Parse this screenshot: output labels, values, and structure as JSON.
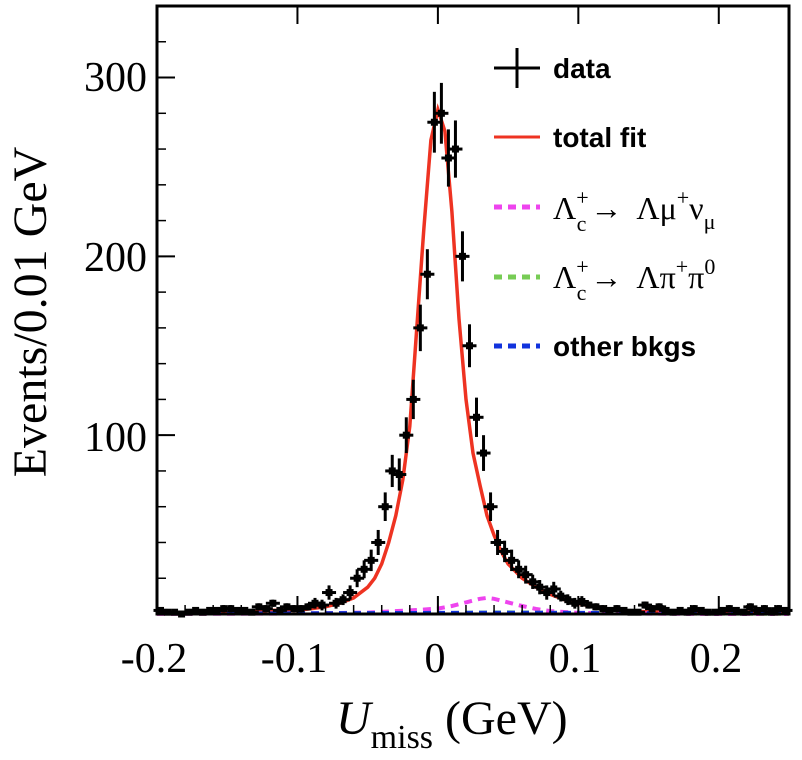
{
  "chart_data": {
    "type": "scatter",
    "title": "",
    "xlabel": {
      "main": "U",
      "sub": "miss",
      "unit": "(GeV)"
    },
    "ylabel": "Events/0.01 GeV",
    "xlim": [
      -0.2,
      0.25
    ],
    "ylim": [
      0,
      340
    ],
    "x_ticks": [
      -0.2,
      -0.1,
      0,
      0.1,
      0.2
    ],
    "x_tick_labels": [
      "-0.2",
      "-0.1",
      "0",
      "0.1",
      "0.2"
    ],
    "y_ticks": [
      100,
      200,
      300
    ],
    "y_tick_labels": [
      "100",
      "200",
      "300"
    ],
    "grid": false,
    "legend_position": "top-right",
    "series": [
      {
        "name": "data",
        "kind": "points-with-errors",
        "color": "#000000",
        "x": [
          -0.1975,
          -0.1925,
          -0.1875,
          -0.1825,
          -0.1775,
          -0.1725,
          -0.1675,
          -0.1625,
          -0.1575,
          -0.1525,
          -0.1475,
          -0.1425,
          -0.1375,
          -0.1325,
          -0.1275,
          -0.1225,
          -0.1175,
          -0.1125,
          -0.1075,
          -0.1025,
          -0.0975,
          -0.0925,
          -0.0875,
          -0.0825,
          -0.0775,
          -0.0725,
          -0.0675,
          -0.0625,
          -0.0575,
          -0.0525,
          -0.0475,
          -0.0425,
          -0.0375,
          -0.0325,
          -0.0275,
          -0.0225,
          -0.0175,
          -0.0125,
          -0.0075,
          -0.0025,
          0.0025,
          0.0075,
          0.0125,
          0.0175,
          0.0225,
          0.0275,
          0.0325,
          0.0375,
          0.0425,
          0.0475,
          0.0525,
          0.0575,
          0.0625,
          0.0675,
          0.0725,
          0.0775,
          0.0825,
          0.0875,
          0.0925,
          0.0975,
          0.1025,
          0.1075,
          0.1125,
          0.1175,
          0.1225,
          0.1275,
          0.1325,
          0.1375,
          0.1425,
          0.1475,
          0.1525,
          0.1575,
          0.1625,
          0.1675,
          0.1725,
          0.1775,
          0.1825,
          0.1875,
          0.1925,
          0.1975,
          0.2025,
          0.2075,
          0.2125,
          0.2175,
          0.2225,
          0.2275,
          0.2325,
          0.2375,
          0.2425,
          0.2475
        ],
        "y": [
          2,
          1,
          1,
          0,
          1,
          2,
          1,
          2,
          2,
          3,
          3,
          2,
          2,
          1,
          4,
          3,
          6,
          2,
          4,
          3,
          3,
          4,
          6,
          5,
          12,
          6,
          8,
          12,
          20,
          25,
          30,
          40,
          60,
          80,
          78,
          100,
          120,
          160,
          190,
          275,
          280,
          255,
          260,
          200,
          150,
          110,
          90,
          60,
          40,
          35,
          30,
          25,
          22,
          18,
          15,
          12,
          14,
          10,
          8,
          6,
          7,
          5,
          4,
          3,
          2,
          3,
          2,
          1,
          1,
          5,
          3,
          4,
          2,
          1,
          2,
          1,
          3,
          2,
          1,
          1,
          2,
          3,
          2,
          1,
          4,
          2,
          3,
          1,
          3,
          2
        ],
        "err": [
          1,
          1,
          1,
          0,
          1,
          1,
          1,
          1,
          1,
          2,
          2,
          1,
          1,
          1,
          2,
          2,
          2,
          1,
          2,
          2,
          2,
          2,
          3,
          3,
          4,
          3,
          3,
          4,
          5,
          5,
          6,
          7,
          8,
          9,
          9,
          10,
          11,
          13,
          14,
          17,
          17,
          16,
          16,
          14,
          12,
          11,
          10,
          8,
          7,
          6,
          6,
          5,
          5,
          4,
          4,
          4,
          4,
          3,
          3,
          3,
          3,
          2,
          2,
          2,
          1,
          2,
          1,
          1,
          1,
          2,
          2,
          2,
          1,
          1,
          1,
          1,
          2,
          1,
          1,
          1,
          1,
          2,
          1,
          1,
          2,
          1,
          2,
          1,
          2,
          1
        ]
      },
      {
        "name": "total fit",
        "kind": "line",
        "color": "#ee3322",
        "x": [
          -0.2,
          -0.18,
          -0.16,
          -0.14,
          -0.12,
          -0.1,
          -0.09,
          -0.08,
          -0.07,
          -0.06,
          -0.05,
          -0.045,
          -0.04,
          -0.035,
          -0.03,
          -0.025,
          -0.02,
          -0.015,
          -0.01,
          -0.005,
          0,
          0.005,
          0.01,
          0.015,
          0.02,
          0.025,
          0.03,
          0.035,
          0.04,
          0.045,
          0.05,
          0.06,
          0.07,
          0.08,
          0.09,
          0.1,
          0.11,
          0.12,
          0.13,
          0.14,
          0.16,
          0.18,
          0.2,
          0.22,
          0.24,
          0.25
        ],
        "y": [
          1,
          1,
          1,
          1,
          2,
          2,
          3,
          4,
          6,
          9,
          15,
          20,
          28,
          40,
          55,
          75,
          105,
          160,
          215,
          265,
          282,
          270,
          225,
          165,
          120,
          90,
          72,
          55,
          44,
          35,
          28,
          20,
          15,
          11,
          8,
          6,
          4,
          3,
          2,
          1.5,
          1,
          1,
          1,
          1,
          1,
          1
        ]
      },
      {
        "name": "Λ_c^+ → Λμ^+ν_μ",
        "kind": "dashed-line",
        "color": "#ee44ee",
        "x": [
          -0.2,
          -0.1,
          -0.05,
          -0.02,
          0,
          0.01,
          0.02,
          0.03,
          0.035,
          0.04,
          0.05,
          0.06,
          0.07,
          0.08,
          0.1,
          0.15,
          0.2,
          0.25
        ],
        "y": [
          0,
          0.3,
          0.8,
          2,
          3,
          4.5,
          6.5,
          8.5,
          9,
          8.5,
          6.5,
          4.5,
          2.8,
          1.6,
          0.6,
          0.2,
          0,
          0
        ]
      },
      {
        "name": "Λ_c^+ → Λπ^+π^0",
        "kind": "dashed-line",
        "color": "#77cc55",
        "x": [
          -0.2,
          -0.1,
          0,
          0.03,
          0.05,
          0.08,
          0.1,
          0.15,
          0.2,
          0.25
        ],
        "y": [
          0.2,
          0.3,
          0.5,
          0.8,
          0.9,
          0.7,
          0.5,
          0.3,
          0.2,
          0.1
        ]
      },
      {
        "name": "other bkgs",
        "kind": "dashed-line",
        "color": "#1133dd",
        "x": [
          -0.2,
          -0.1,
          0,
          0.05,
          0.1,
          0.15,
          0.2,
          0.25
        ],
        "y": [
          0.3,
          0.4,
          0.6,
          0.7,
          0.6,
          0.5,
          0.4,
          0.3
        ]
      }
    ]
  },
  "legend": {
    "items": [
      {
        "label": "data",
        "style": "data",
        "color": "#000000"
      },
      {
        "label": "total fit",
        "style": "line",
        "color": "#ee3322"
      },
      {
        "label_parts": {
          "lam": "Λ",
          "c_sub": "c",
          "c_sup": "+",
          "arrow": "→",
          "rhs": "Λμ",
          "rhs_sup": "+",
          "nu": "ν",
          "nu_sub": "μ"
        },
        "style": "dash",
        "color": "#ee44ee"
      },
      {
        "label_parts": {
          "lam": "Λ",
          "c_sub": "c",
          "c_sup": "+",
          "arrow": "→",
          "rhs": "Λπ",
          "rhs_sup": "+",
          "pi": "π",
          "pi_sup": "0"
        },
        "style": "dash",
        "color": "#77cc55"
      },
      {
        "label": "other bkgs",
        "style": "dash",
        "color": "#1133dd"
      }
    ]
  }
}
